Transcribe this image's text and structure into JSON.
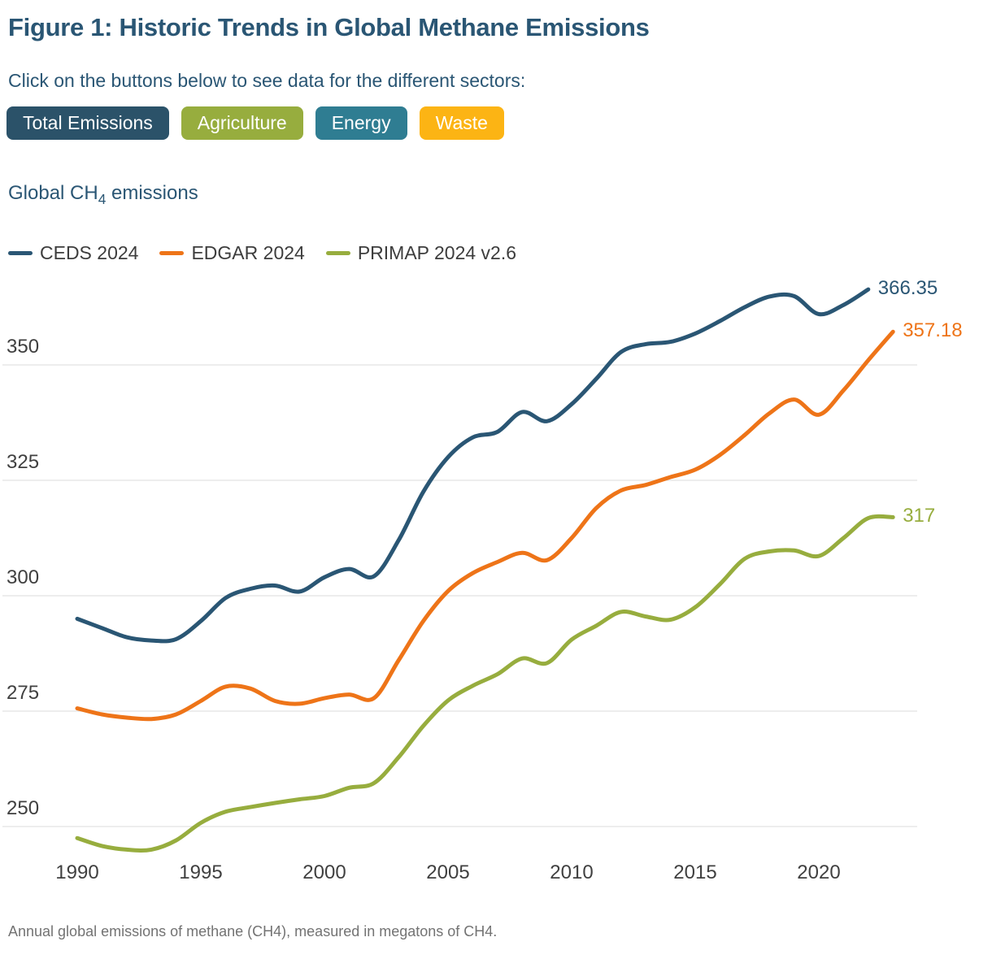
{
  "page": {
    "title": "Figure 1: Historic Trends in Global Methane Emissions",
    "subtitle": "Click on the buttons below to see data for the different sectors:",
    "footer": "Annual global emissions of methane (CH4), measured in megatons of CH4."
  },
  "buttons": [
    {
      "label": "Total Emissions",
      "color": "#2b5269",
      "active": true
    },
    {
      "label": "Agriculture",
      "color": "#97ad3e",
      "active": false
    },
    {
      "label": "Energy",
      "color": "#2f7d92",
      "active": false
    },
    {
      "label": "Waste",
      "color": "#fcb414",
      "active": false
    }
  ],
  "chart": {
    "title_prefix": "Global CH",
    "title_sub": "4",
    "title_suffix": " emissions"
  },
  "chart_data": {
    "type": "line",
    "title": "Global CH4 emissions",
    "xlabel": "",
    "ylabel": "",
    "units": "megatons of CH4",
    "grid": "horizontal",
    "legend_position": "top-left",
    "xlim": [
      1990,
      2023.6
    ],
    "ylim": [
      240,
      372
    ],
    "x_ticks": [
      1990,
      1995,
      2000,
      2005,
      2010,
      2015,
      2020
    ],
    "y_ticks": [
      250,
      275,
      300,
      325,
      350
    ],
    "series": [
      {
        "name": "CEDS 2024",
        "color": "#2a5674",
        "end_label": "366.35",
        "years": [
          1990,
          1991,
          1992,
          1993,
          1994,
          1995,
          1996,
          1997,
          1998,
          1999,
          2000,
          2001,
          2002,
          2003,
          2004,
          2005,
          2006,
          2007,
          2008,
          2009,
          2010,
          2011,
          2012,
          2013,
          2014,
          2015,
          2016,
          2017,
          2018,
          2019,
          2020,
          2021,
          2022
        ],
        "values": [
          295.0,
          293.0,
          291.0,
          290.3,
          290.6,
          294.5,
          299.5,
          301.5,
          302.2,
          300.9,
          304.0,
          305.8,
          304.2,
          312.0,
          322.5,
          330.0,
          334.3,
          335.5,
          339.8,
          337.8,
          341.5,
          347.0,
          352.8,
          354.5,
          355.0,
          356.8,
          359.5,
          362.5,
          364.8,
          364.9,
          361.0,
          363.0,
          366.35
        ]
      },
      {
        "name": "EDGAR 2024",
        "color": "#ee7418",
        "end_label": "357.18",
        "years": [
          1990,
          1991,
          1992,
          1993,
          1994,
          1995,
          1996,
          1997,
          1998,
          1999,
          2000,
          2001,
          2002,
          2003,
          2004,
          2005,
          2006,
          2007,
          2008,
          2009,
          2010,
          2011,
          2012,
          2013,
          2014,
          2015,
          2016,
          2017,
          2018,
          2019,
          2020,
          2021,
          2022,
          2023
        ],
        "values": [
          275.6,
          274.3,
          273.6,
          273.3,
          274.3,
          277.2,
          280.3,
          279.9,
          277.2,
          276.6,
          277.8,
          278.6,
          277.8,
          286.0,
          294.5,
          301.0,
          304.9,
          307.3,
          309.3,
          307.7,
          312.5,
          319.0,
          322.8,
          324.0,
          325.7,
          327.3,
          330.5,
          334.8,
          339.5,
          342.5,
          339.2,
          344.5,
          351.0,
          357.18
        ]
      },
      {
        "name": "PRIMAP 2024 v2.6",
        "color": "#97ad3e",
        "end_label": "317",
        "years": [
          1990,
          1991,
          1992,
          1993,
          1994,
          1995,
          1996,
          1997,
          1998,
          1999,
          2000,
          2001,
          2002,
          2003,
          2004,
          2005,
          2006,
          2007,
          2008,
          2009,
          2010,
          2011,
          2012,
          2013,
          2014,
          2015,
          2016,
          2017,
          2018,
          2019,
          2020,
          2021,
          2022,
          2023
        ],
        "values": [
          247.5,
          245.8,
          245.0,
          245.0,
          247.0,
          250.8,
          253.2,
          254.2,
          255.1,
          255.9,
          256.6,
          258.4,
          259.4,
          265.0,
          271.8,
          277.3,
          280.5,
          283.0,
          286.4,
          285.4,
          290.5,
          293.5,
          296.5,
          295.5,
          294.8,
          297.5,
          302.5,
          308.0,
          309.6,
          309.8,
          308.6,
          312.5,
          316.8,
          317.0
        ]
      }
    ]
  }
}
